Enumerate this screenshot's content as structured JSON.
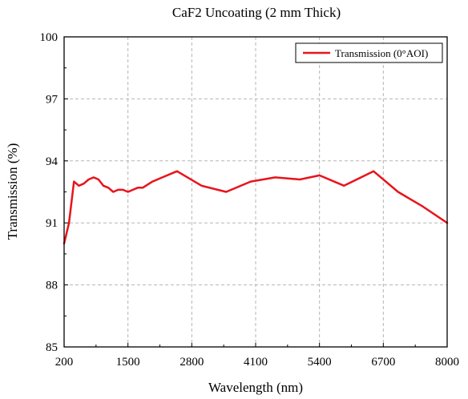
{
  "chart_data": {
    "type": "line",
    "title": "CaF2 Uncoating (2 mm  Thick)",
    "xlabel": "Wavelength (nm)",
    "ylabel": "Transmission (%)",
    "xlim": [
      200,
      8000
    ],
    "ylim": [
      85,
      100
    ],
    "xticks": [
      200,
      1500,
      2800,
      4100,
      5400,
      6700,
      8000
    ],
    "yticks": [
      85,
      88,
      91,
      94,
      97,
      100
    ],
    "xtick_labels": [
      "200",
      "1500",
      "2800",
      "4100",
      "5400",
      "6700",
      "8000"
    ],
    "ytick_labels": [
      "85",
      "88",
      "91",
      "94",
      "97",
      "100"
    ],
    "grid": true,
    "legend_position": "top-right",
    "series": [
      {
        "name": "Transmission (0°AOI)",
        "color": "#e8141b",
        "x": [
          200,
          300,
          400,
          500,
          600,
          700,
          800,
          900,
          1000,
          1100,
          1200,
          1300,
          1400,
          1500,
          1600,
          1700,
          1800,
          2000,
          2200,
          2500,
          3000,
          3500,
          4000,
          4500,
          5000,
          5400,
          5900,
          6500,
          7000,
          7500,
          8000
        ],
        "y": [
          90.0,
          91.0,
          93.0,
          92.8,
          92.9,
          93.1,
          93.2,
          93.1,
          92.8,
          92.7,
          92.5,
          92.6,
          92.6,
          92.5,
          92.6,
          92.7,
          92.7,
          93.0,
          93.2,
          93.5,
          92.8,
          92.5,
          93.0,
          93.2,
          93.1,
          93.3,
          92.8,
          93.5,
          92.5,
          91.8,
          91.0
        ]
      }
    ]
  }
}
